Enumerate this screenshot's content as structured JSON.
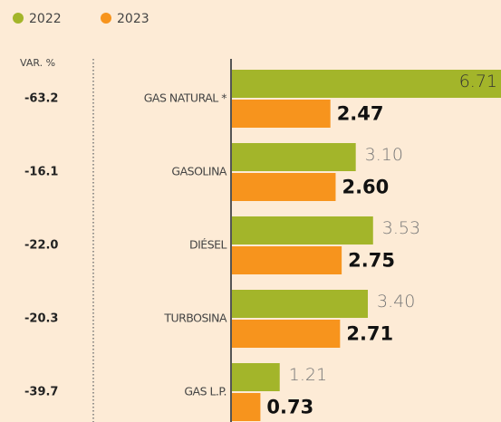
{
  "chart_data": {
    "type": "bar",
    "orientation": "horizontal",
    "categories": [
      "GAS NATURAL *",
      "GASOLINA",
      "DIÉSEL",
      "TURBOSINA",
      "GAS L.P."
    ],
    "series": [
      {
        "name": "2022",
        "color": "#a3b52a",
        "values": [
          6.71,
          3.1,
          3.53,
          3.4,
          1.21
        ],
        "value_labels": [
          "6.71",
          "3.10",
          "3.53",
          "3.40",
          "1.21"
        ]
      },
      {
        "name": "2023",
        "color": "#f7941d",
        "values": [
          2.47,
          2.6,
          2.75,
          2.71,
          0.73
        ],
        "value_labels": [
          "2.47",
          "2.60",
          "2.75",
          "2.71",
          "0.73"
        ]
      }
    ],
    "variation": {
      "label": "VAR. %",
      "values": [
        -63.2,
        -16.1,
        -22.0,
        -20.3,
        -39.7
      ],
      "value_labels": [
        "-63.2",
        "-16.1",
        "-22.0",
        "-20.3",
        "-39.7"
      ]
    }
  }
}
